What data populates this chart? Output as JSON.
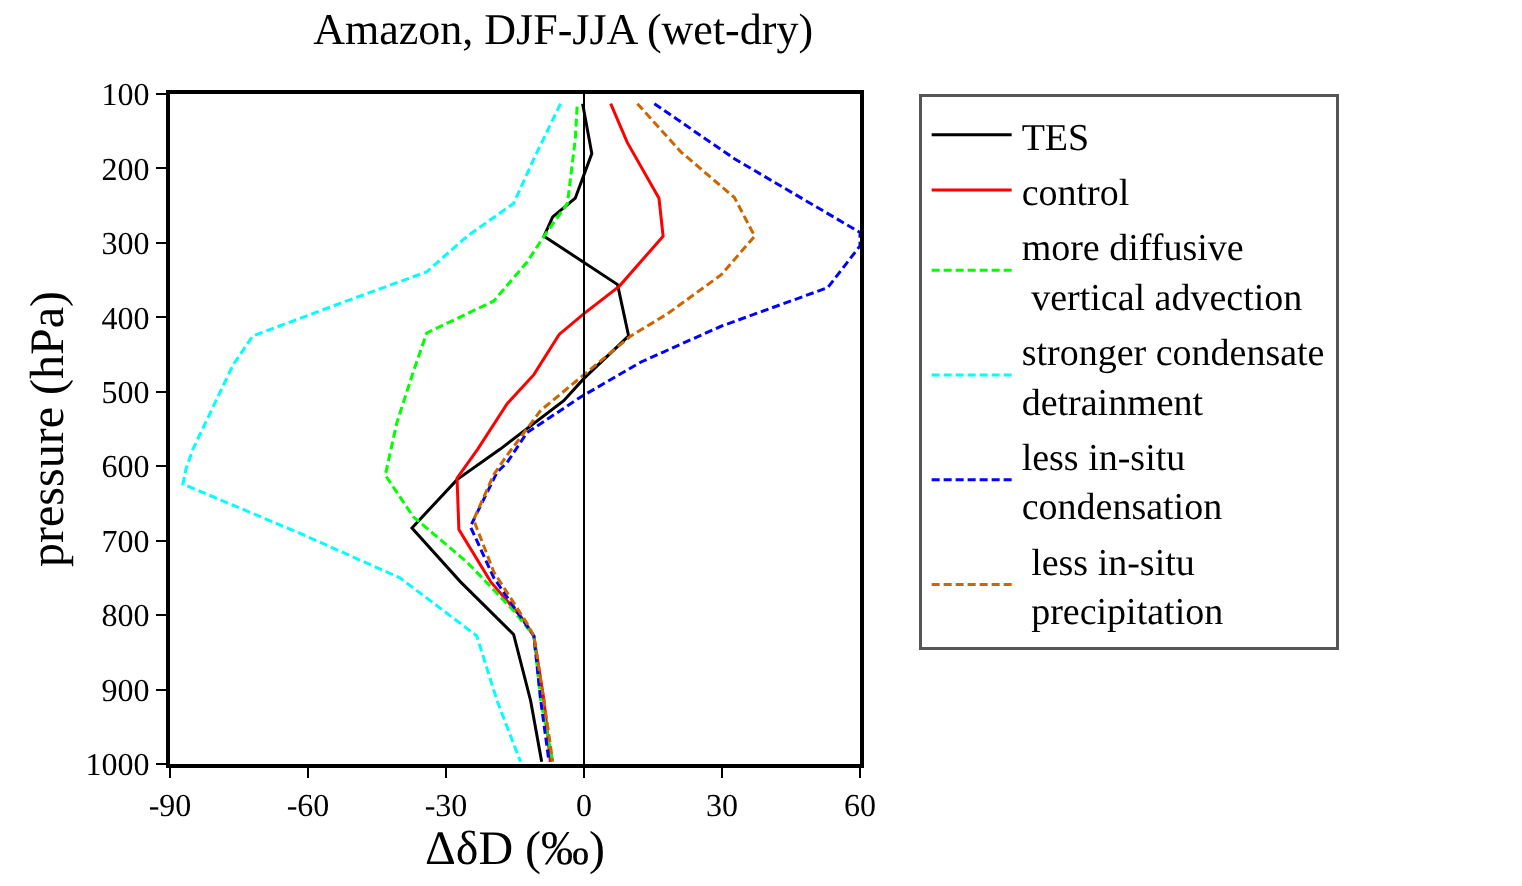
{
  "chart_data": {
    "type": "line",
    "title": "Amazon, DJF-JJA (wet-dry)",
    "xlabel": "ΔδD (‰)",
    "ylabel": "pressure (hPa)",
    "xlim": [
      -90,
      60
    ],
    "xticks": [
      -90,
      -60,
      -30,
      0,
      30,
      60
    ],
    "ylim": [
      1000,
      100
    ],
    "yticks": [
      100,
      200,
      300,
      400,
      500,
      600,
      700,
      800,
      900,
      1000
    ],
    "legend": "right",
    "marker": "none",
    "ref_lines": [
      {
        "axis": "x",
        "value": 0,
        "color": "#000000",
        "line_style": "solid"
      }
    ],
    "series": [
      {
        "name": "TES",
        "color": "#000000",
        "line_style": "solid",
        "x": [
          -0.3,
          1.7,
          -1.9,
          -6.8,
          -8.7,
          7.3,
          9.7,
          0,
          -4.4,
          -18.2,
          -27.6,
          -37.4,
          -26.9,
          -15.3,
          -11.6,
          -9.2
        ],
        "values": [
          113,
          180,
          240,
          265,
          291,
          356,
          425,
          482,
          512,
          577,
          618,
          683,
          755,
          826,
          915,
          997
        ]
      },
      {
        "name": "control",
        "color": "#ff0000",
        "line_style": "solid",
        "x": [
          5.8,
          9.4,
          16.3,
          17.2,
          7.7,
          0,
          -5.4,
          -10.9,
          -16.7,
          -23.1,
          -27.6,
          -27.2,
          -20.3,
          -13.1,
          -10.9,
          -8.7,
          -7.3
        ],
        "values": [
          113,
          165,
          240,
          291,
          358,
          395,
          423,
          477,
          516,
          577,
          616,
          685,
          755,
          807,
          828,
          915,
          997
        ]
      },
      {
        "name": "more diffusive\n vertical advection",
        "color": "#00ff00",
        "line_style": "dashed",
        "x": [
          -1.5,
          -1.9,
          -3.6,
          -8.7,
          -12.4,
          -19.6,
          -34.2,
          -37.1,
          -40.7,
          -43.2,
          -37.1,
          -25.4,
          -15.3,
          -10.9,
          -9.4,
          -6.8
        ],
        "values": [
          117,
          161,
          247,
          291,
          326,
          378,
          421,
          473,
          542,
          612,
          668,
          729,
          794,
          828,
          915,
          997
        ]
      },
      {
        "name": "stronger condensate\ndetrainment",
        "color": "#00ffff",
        "line_style": "dashed",
        "x": [
          -5.1,
          -10.9,
          -15.3,
          -25.4,
          -34.2,
          -51.6,
          -72,
          -76.3,
          -85,
          -86.5,
          -87.2,
          -61.8,
          -40,
          -26.9,
          -23.3,
          -18.9,
          -13.8
        ],
        "values": [
          113,
          187,
          247,
          291,
          339,
          378,
          425,
          464,
          577,
          603,
          624,
          690,
          750,
          811,
          828,
          915,
          997
        ]
      },
      {
        "name": "less in-situ\ncondensation",
        "color": "#0000ff",
        "line_style": "dashed",
        "x": [
          15.3,
          32.7,
          60,
          60,
          53,
          29.8,
          12.4,
          -0.7,
          -12.4,
          -16.7,
          -18.9,
          -24.7,
          -19.6,
          -13.8,
          -10.9,
          -9.4,
          -7.6
        ],
        "values": [
          113,
          187,
          286,
          304,
          360,
          412,
          460,
          507,
          555,
          595,
          608,
          681,
          750,
          802,
          828,
          915,
          997
        ]
      },
      {
        "name": " less in-situ\n precipitation",
        "color": "#cc6600",
        "line_style": "dashed",
        "x": [
          11.6,
          21.1,
          32.7,
          37.1,
          29.8,
          18.2,
          10.2,
          0,
          -9.4,
          -16.7,
          -19.6,
          -24,
          -19.6,
          -12.4,
          -10.9,
          -8.7,
          -6.8
        ],
        "values": [
          113,
          178,
          239,
          291,
          343,
          395,
          425,
          477,
          525,
          585,
          611,
          672,
          742,
          811,
          828,
          915,
          997
        ]
      }
    ]
  }
}
